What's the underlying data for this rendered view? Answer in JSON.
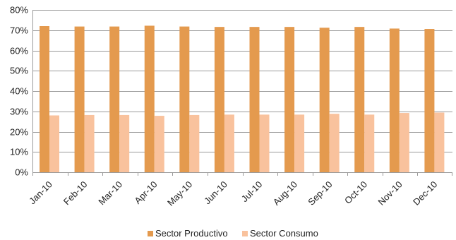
{
  "chart_data": {
    "type": "bar",
    "categories": [
      "Jan-10",
      "Feb-10",
      "Mar-10",
      "Apr-10",
      "May-10",
      "Jun-10",
      "Jul-10",
      "Aug-10",
      "Sep-10",
      "Oct-10",
      "Nov-10",
      "Dec-10"
    ],
    "series": [
      {
        "name": "Sector Productivo",
        "color": "#E49A4E",
        "values": [
          72,
          71.8,
          71.8,
          72.2,
          71.8,
          71.6,
          71.6,
          71.6,
          71.2,
          71.6,
          70.8,
          70.6
        ]
      },
      {
        "name": "Sector Consumo",
        "color": "#F9C29D",
        "values": [
          28,
          28.2,
          28.2,
          27.8,
          28.2,
          28.4,
          28.4,
          28.4,
          28.8,
          28.4,
          29.2,
          29.4
        ]
      }
    ],
    "ylim": [
      0,
      80
    ],
    "yticks": [
      "0%",
      "10%",
      "20%",
      "30%",
      "40%",
      "50%",
      "60%",
      "70%",
      "80%"
    ],
    "title": "",
    "xlabel": "",
    "ylabel": "",
    "grid": true,
    "legend": "bottom-center"
  }
}
